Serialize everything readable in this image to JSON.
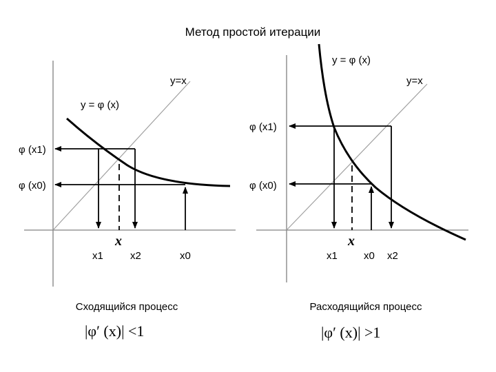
{
  "title": "Метод простой итерации",
  "left": {
    "curve_label": "y = φ (x)",
    "diag_label": "y=x",
    "phi_x1": "φ (x1)",
    "phi_x0": "φ (x0)",
    "x_root": "x",
    "x1": "x1",
    "x2": "x2",
    "x0": "x0",
    "caption": "Сходящийся процесс",
    "condition": "|φ′ (x)| <1"
  },
  "right": {
    "curve_label": "y = φ (x)",
    "diag_label": "y=x",
    "phi_x1": "φ (x1)",
    "phi_x0": "φ (x0)",
    "x_root": "x",
    "x1": "x1",
    "x0": "x0",
    "x2": "x2",
    "caption": "Расходящийся процесс",
    "condition": "|φ′ (x)| >1"
  },
  "colors": {
    "ink": "#000000",
    "axis": "#808080",
    "diag": "#a0a0a0"
  }
}
